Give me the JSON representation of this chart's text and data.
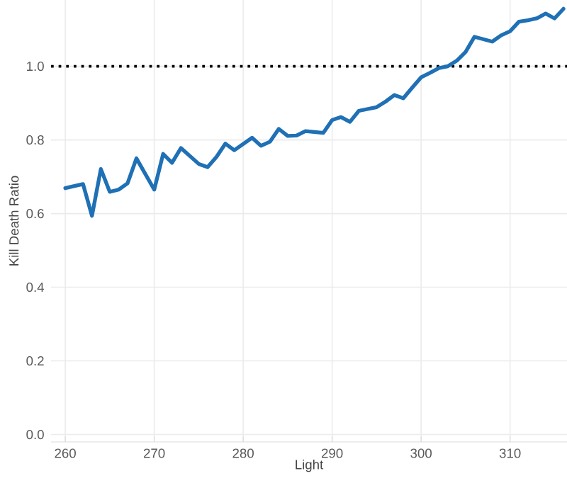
{
  "chart_data": {
    "type": "line",
    "xlabel": "Light",
    "ylabel": "Kill Death Ratio",
    "x": [
      260,
      262,
      263,
      264,
      265,
      266,
      267,
      268,
      270,
      271,
      272,
      273,
      275,
      276,
      277,
      278,
      279,
      281,
      282,
      283,
      284,
      285,
      286,
      287,
      289,
      290,
      291,
      292,
      293,
      295,
      296,
      297,
      298,
      299,
      300,
      301,
      302,
      303,
      304,
      305,
      306,
      308,
      309,
      310,
      311,
      312,
      313,
      314,
      315,
      316
    ],
    "values": [
      0.669,
      0.68,
      0.594,
      0.721,
      0.659,
      0.665,
      0.682,
      0.75,
      0.665,
      0.762,
      0.738,
      0.778,
      0.735,
      0.726,
      0.754,
      0.79,
      0.772,
      0.806,
      0.784,
      0.795,
      0.83,
      0.811,
      0.812,
      0.824,
      0.819,
      0.854,
      0.862,
      0.849,
      0.879,
      0.889,
      0.904,
      0.922,
      0.913,
      0.942,
      0.97,
      0.982,
      0.995,
      1.0,
      1.015,
      1.039,
      1.08,
      1.067,
      1.084,
      1.095,
      1.121,
      1.125,
      1.13,
      1.143,
      1.13,
      1.156
    ],
    "color": "#1f70b5",
    "xlim": [
      258.4,
      316.4
    ],
    "ylim": [
      -0.02,
      1.18
    ],
    "xticks": [
      260,
      270,
      280,
      290,
      300,
      310
    ],
    "yticks": [
      {
        "value": 0,
        "label": "0.0"
      },
      {
        "value": 0.2,
        "label": "0.2"
      },
      {
        "value": 0.4,
        "label": "0.4"
      },
      {
        "value": 0.6,
        "label": "0.6"
      },
      {
        "value": 0.8,
        "label": "0.8"
      },
      {
        "value": 1,
        "label": "1.0"
      }
    ],
    "ref_lines": [
      {
        "axis": "y",
        "value": 1,
        "color": "#000000",
        "line_style": "dotted"
      }
    ],
    "grid": true,
    "line_style": "solid",
    "marker": "none"
  }
}
